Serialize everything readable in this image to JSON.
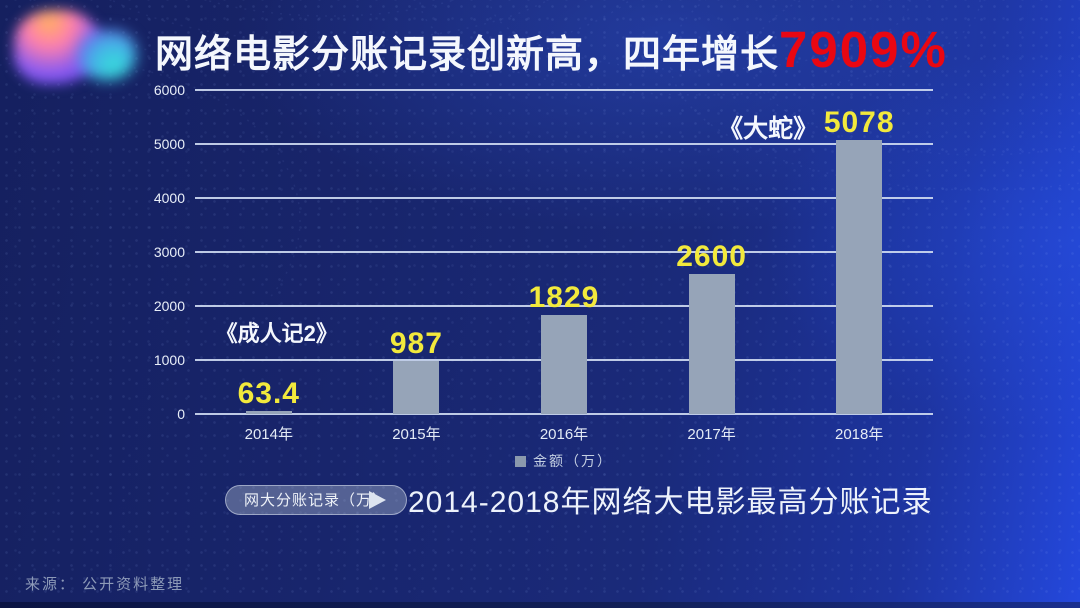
{
  "title": {
    "text": "网络电影分账记录创新高，四年增长",
    "highlight": "7909%"
  },
  "chart_data": {
    "type": "bar",
    "title": "2014-2018年网络大电影最高分账记录",
    "categories": [
      "2014年",
      "2015年",
      "2016年",
      "2017年",
      "2018年"
    ],
    "values": [
      63.4,
      987,
      1829,
      2600,
      5078
    ],
    "value_labels": [
      "63.4",
      "987",
      "1829",
      "2600",
      "5078"
    ],
    "annotations": [
      {
        "text": "《成人记2》",
        "bar_index": 0,
        "placement": "above"
      },
      {
        "text": "《大蛇》",
        "bar_index": 4,
        "placement": "left"
      }
    ],
    "ylim": [
      0,
      6000
    ],
    "yticks": [
      0,
      1000,
      2000,
      3000,
      4000,
      5000,
      6000
    ],
    "ytick_labels": [
      "0",
      "1000",
      "2000",
      "3000",
      "4000",
      "5000",
      "6000"
    ],
    "legend": [
      "金额（万）"
    ],
    "legend_position": "bottom",
    "grid": true,
    "xlabel": "",
    "ylabel": ""
  },
  "footer": {
    "tag": "网大分账记录（万）",
    "source": "来源： 公开资料整理"
  },
  "colors": {
    "accent_red": "#e90712",
    "value_yellow": "#f2e93c",
    "bar_fill": "#96a4b8",
    "grid_line": "#cdd9f0",
    "background_deep": "#15205f",
    "background_bright": "#2448dd",
    "text_white": "#f4f7fd",
    "muted_text": "#8d9ab8"
  }
}
